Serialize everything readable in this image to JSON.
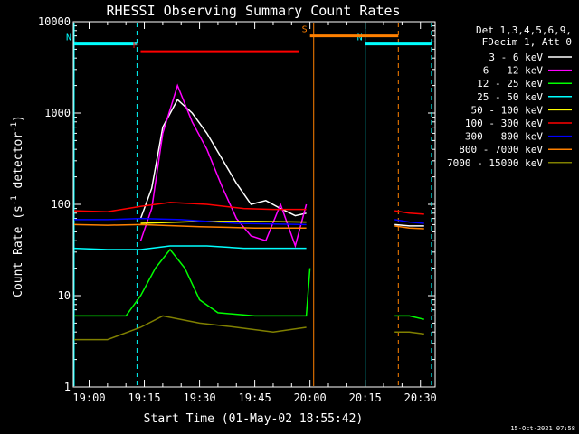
{
  "chart_data": {
    "type": "line",
    "title": "RHESSI Observing Summary Count Rates",
    "xlabel": "Start Time (01-May-02 18:55:42)",
    "ylabel_main": "Count Rate (s",
    "ylabel_sup1": "-1",
    "ylabel_mid": " detector",
    "ylabel_sup2": "-1",
    "ylabel_end": ")",
    "yscale": "log",
    "ylim": [
      1,
      10000
    ],
    "xlim": [
      "18:55:42",
      "20:34:00"
    ],
    "x_ticks": [
      "19:00",
      "19:15",
      "19:30",
      "19:45",
      "20:00",
      "20:15",
      "20:30"
    ],
    "y_ticks": [
      "1",
      "10",
      "100",
      "1000",
      "10000"
    ],
    "legend_header": [
      "Det 1,3,4,5,6,9,",
      "FDecim 1, Att 0"
    ],
    "timestamp": "15-Oct-2021 07:58",
    "series": [
      {
        "name": "3 - 6 keV",
        "color": "#ffffff",
        "points": [
          [
            "19:14",
            70
          ],
          [
            "19:17",
            150
          ],
          [
            "19:20",
            700
          ],
          [
            "19:24",
            1400
          ],
          [
            "19:28",
            1000
          ],
          [
            "19:32",
            600
          ],
          [
            "19:36",
            320
          ],
          [
            "19:40",
            170
          ],
          [
            "19:44",
            100
          ],
          [
            "19:48",
            110
          ],
          [
            "19:52",
            90
          ],
          [
            "19:56",
            75
          ],
          [
            "19:59",
            80
          ]
        ],
        "after_gap": [
          [
            "20:23",
            60
          ],
          [
            "20:27",
            58
          ],
          [
            "20:31",
            58
          ]
        ]
      },
      {
        "name": "6 - 12 keV",
        "color": "#ff00ff",
        "points": [
          [
            "19:14",
            40
          ],
          [
            "19:17",
            90
          ],
          [
            "19:20",
            600
          ],
          [
            "19:24",
            2000
          ],
          [
            "19:28",
            800
          ],
          [
            "19:32",
            400
          ],
          [
            "19:36",
            160
          ],
          [
            "19:40",
            70
          ],
          [
            "19:44",
            45
          ],
          [
            "19:48",
            40
          ],
          [
            "19:52",
            100
          ],
          [
            "19:56",
            35
          ],
          [
            "19:59",
            100
          ]
        ],
        "after_gap": []
      },
      {
        "name": "12 - 25 keV",
        "color": "#00ff00",
        "points": [
          [
            "18:55",
            6
          ],
          [
            "19:05",
            6
          ],
          [
            "19:10",
            6
          ],
          [
            "19:14",
            10
          ],
          [
            "19:18",
            20
          ],
          [
            "19:22",
            32
          ],
          [
            "19:26",
            20
          ],
          [
            "19:30",
            9
          ],
          [
            "19:35",
            6.5
          ],
          [
            "19:45",
            6
          ],
          [
            "19:55",
            6
          ],
          [
            "19:59",
            6
          ],
          [
            "20:00",
            20
          ]
        ],
        "after_gap": [
          [
            "20:23",
            6
          ],
          [
            "20:27",
            6
          ],
          [
            "20:31",
            5.5
          ]
        ]
      },
      {
        "name": "25 - 50 keV",
        "color": "#00ffff",
        "points": [
          [
            "18:55",
            33
          ],
          [
            "19:05",
            32
          ],
          [
            "19:14",
            32
          ],
          [
            "19:22",
            35
          ],
          [
            "19:32",
            35
          ],
          [
            "19:42",
            33
          ],
          [
            "19:50",
            33
          ],
          [
            "19:59",
            33
          ]
        ],
        "after_gap": []
      },
      {
        "name": "50 - 100 keV",
        "color": "#ffff00",
        "points": [
          [
            "19:14",
            62
          ],
          [
            "19:30",
            65
          ],
          [
            "19:45",
            65
          ],
          [
            "19:59",
            64
          ]
        ],
        "after_gap": []
      },
      {
        "name": "100 - 300 keV",
        "color": "#ff0000",
        "points": [
          [
            "18:55",
            85
          ],
          [
            "19:05",
            83
          ],
          [
            "19:14",
            95
          ],
          [
            "19:22",
            105
          ],
          [
            "19:32",
            100
          ],
          [
            "19:42",
            90
          ],
          [
            "19:50",
            88
          ],
          [
            "19:59",
            88
          ]
        ],
        "after_gap": [
          [
            "20:23",
            85
          ],
          [
            "20:27",
            80
          ],
          [
            "20:31",
            78
          ]
        ]
      },
      {
        "name": "300 - 800 keV",
        "color": "#0000ff",
        "points": [
          [
            "18:55",
            68
          ],
          [
            "19:05",
            68
          ],
          [
            "19:14",
            70
          ],
          [
            "19:25",
            68
          ],
          [
            "19:40",
            62
          ],
          [
            "19:59",
            60
          ]
        ],
        "after_gap": [
          [
            "20:23",
            68
          ],
          [
            "20:27",
            64
          ],
          [
            "20:31",
            62
          ]
        ]
      },
      {
        "name": "800 - 7000 keV",
        "color": "#ff8000",
        "points": [
          [
            "18:55",
            60
          ],
          [
            "19:05",
            59
          ],
          [
            "19:14",
            60
          ],
          [
            "19:30",
            57
          ],
          [
            "19:45",
            55
          ],
          [
            "19:59",
            55
          ]
        ],
        "after_gap": [
          [
            "20:23",
            58
          ],
          [
            "20:27",
            55
          ],
          [
            "20:31",
            54
          ]
        ]
      },
      {
        "name": "7000 - 15000 keV",
        "color": "#808000",
        "points": [
          [
            "18:55",
            3.3
          ],
          [
            "19:05",
            3.3
          ],
          [
            "19:14",
            4.5
          ],
          [
            "19:20",
            6
          ],
          [
            "19:30",
            5
          ],
          [
            "19:40",
            4.5
          ],
          [
            "19:50",
            4
          ],
          [
            "19:59",
            4.5
          ]
        ],
        "after_gap": [
          [
            "20:23",
            4
          ],
          [
            "20:27",
            4
          ],
          [
            "20:31",
            3.8
          ]
        ]
      }
    ],
    "flags": [
      {
        "label": "N",
        "color": "#00ffff",
        "start": "18:55",
        "end": "19:13",
        "level": 5700
      },
      {
        "label": "N",
        "color": "#00ffff",
        "start": "20:15",
        "end": "20:33",
        "level": 5700
      },
      {
        "label": "F",
        "color": "#ff0000",
        "start": "19:14",
        "end": "19:57",
        "level": 4700
      },
      {
        "label": "S",
        "color": "#ff8000",
        "start": "20:00",
        "end": "20:24",
        "level": 7000
      }
    ],
    "vlines": [
      {
        "time": "18:55",
        "color": "#00ffff",
        "style": "solid"
      },
      {
        "time": "19:13",
        "color": "#00ffff",
        "style": "dashed"
      },
      {
        "time": "20:01",
        "color": "#ff8000",
        "style": "solid"
      },
      {
        "time": "20:15",
        "color": "#00ffff",
        "style": "solid"
      },
      {
        "time": "20:24",
        "color": "#ff8000",
        "style": "dashed"
      },
      {
        "time": "20:33",
        "color": "#00ffff",
        "style": "dashed"
      }
    ]
  }
}
